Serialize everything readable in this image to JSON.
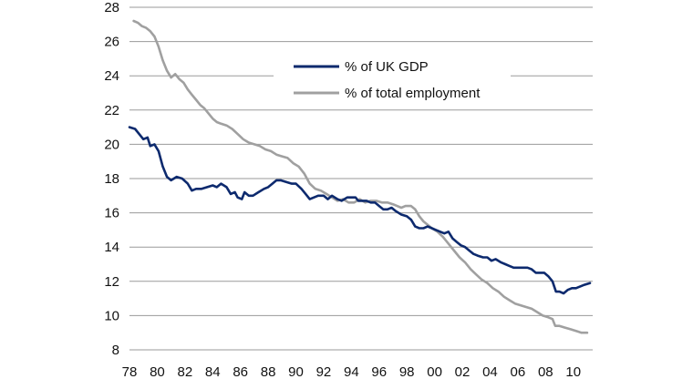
{
  "chart_data": {
    "type": "line",
    "title": "",
    "xlabel": "",
    "ylabel": "",
    "xlim": [
      1978,
      2011.4
    ],
    "ylim": [
      8,
      28
    ],
    "grid": "horizontal",
    "legend_position": "top-center",
    "colors": {
      "gdp": "#0d2a6e",
      "employment": "#a0a0a0"
    },
    "y_ticks": [
      "8",
      "10",
      "12",
      "14",
      "16",
      "18",
      "20",
      "22",
      "24",
      "26",
      "28"
    ],
    "x_ticks": [
      {
        "value": 1978,
        "label": "78"
      },
      {
        "value": 1980,
        "label": "80"
      },
      {
        "value": 1982,
        "label": "82"
      },
      {
        "value": 1984,
        "label": "84"
      },
      {
        "value": 1986,
        "label": "86"
      },
      {
        "value": 1988,
        "label": "88"
      },
      {
        "value": 1990,
        "label": "90"
      },
      {
        "value": 1992,
        "label": "92"
      },
      {
        "value": 1994,
        "label": "94"
      },
      {
        "value": 1996,
        "label": "96"
      },
      {
        "value": 1998,
        "label": "98"
      },
      {
        "value": 2000,
        "label": "00"
      },
      {
        "value": 2002,
        "label": "02"
      },
      {
        "value": 2004,
        "label": "04"
      },
      {
        "value": 2006,
        "label": "06"
      },
      {
        "value": 2008,
        "label": "08"
      },
      {
        "value": 2010,
        "label": "10"
      }
    ],
    "series": [
      {
        "name": "% of UK GDP",
        "color": "#0d2a6e",
        "points": [
          [
            1978.0,
            21.0
          ],
          [
            1978.4,
            20.9
          ],
          [
            1978.7,
            20.6
          ],
          [
            1979.0,
            20.3
          ],
          [
            1979.3,
            20.4
          ],
          [
            1979.5,
            19.9
          ],
          [
            1979.8,
            20.0
          ],
          [
            1980.1,
            19.6
          ],
          [
            1980.4,
            18.7
          ],
          [
            1980.7,
            18.1
          ],
          [
            1981.0,
            17.9
          ],
          [
            1981.4,
            18.1
          ],
          [
            1981.8,
            18.0
          ],
          [
            1982.2,
            17.7
          ],
          [
            1982.5,
            17.3
          ],
          [
            1982.8,
            17.4
          ],
          [
            1983.2,
            17.4
          ],
          [
            1983.6,
            17.5
          ],
          [
            1984.0,
            17.6
          ],
          [
            1984.3,
            17.5
          ],
          [
            1984.6,
            17.7
          ],
          [
            1985.0,
            17.5
          ],
          [
            1985.3,
            17.1
          ],
          [
            1985.6,
            17.2
          ],
          [
            1985.8,
            16.9
          ],
          [
            1986.1,
            16.8
          ],
          [
            1986.3,
            17.2
          ],
          [
            1986.6,
            17.0
          ],
          [
            1986.9,
            17.0
          ],
          [
            1987.3,
            17.2
          ],
          [
            1987.7,
            17.4
          ],
          [
            1988.0,
            17.5
          ],
          [
            1988.3,
            17.7
          ],
          [
            1988.6,
            17.9
          ],
          [
            1988.9,
            17.9
          ],
          [
            1989.3,
            17.8
          ],
          [
            1989.7,
            17.7
          ],
          [
            1990.0,
            17.7
          ],
          [
            1990.4,
            17.4
          ],
          [
            1990.7,
            17.1
          ],
          [
            1991.0,
            16.8
          ],
          [
            1991.3,
            16.9
          ],
          [
            1991.6,
            17.0
          ],
          [
            1992.0,
            17.0
          ],
          [
            1992.3,
            16.8
          ],
          [
            1992.6,
            17.0
          ],
          [
            1993.0,
            16.8
          ],
          [
            1993.3,
            16.7
          ],
          [
            1993.7,
            16.9
          ],
          [
            1994.0,
            16.9
          ],
          [
            1994.3,
            16.9
          ],
          [
            1994.5,
            16.7
          ],
          [
            1994.8,
            16.7
          ],
          [
            1995.1,
            16.7
          ],
          [
            1995.4,
            16.6
          ],
          [
            1995.7,
            16.6
          ],
          [
            1996.0,
            16.4
          ],
          [
            1996.3,
            16.2
          ],
          [
            1996.6,
            16.2
          ],
          [
            1996.9,
            16.3
          ],
          [
            1997.2,
            16.1
          ],
          [
            1997.6,
            15.9
          ],
          [
            1998.0,
            15.8
          ],
          [
            1998.3,
            15.6
          ],
          [
            1998.6,
            15.2
          ],
          [
            1998.9,
            15.1
          ],
          [
            1999.2,
            15.1
          ],
          [
            1999.5,
            15.2
          ],
          [
            1999.8,
            15.1
          ],
          [
            2000.1,
            15.0
          ],
          [
            2000.4,
            14.9
          ],
          [
            2000.7,
            14.8
          ],
          [
            2001.0,
            14.9
          ],
          [
            2001.3,
            14.5
          ],
          [
            2001.6,
            14.3
          ],
          [
            2001.9,
            14.1
          ],
          [
            2002.2,
            14.0
          ],
          [
            2002.5,
            13.8
          ],
          [
            2002.8,
            13.6
          ],
          [
            2003.1,
            13.5
          ],
          [
            2003.5,
            13.4
          ],
          [
            2003.8,
            13.4
          ],
          [
            2004.1,
            13.2
          ],
          [
            2004.4,
            13.3
          ],
          [
            2004.8,
            13.1
          ],
          [
            2005.1,
            13.0
          ],
          [
            2005.4,
            12.9
          ],
          [
            2005.7,
            12.8
          ],
          [
            2006.0,
            12.8
          ],
          [
            2006.4,
            12.8
          ],
          [
            2006.7,
            12.8
          ],
          [
            2007.0,
            12.7
          ],
          [
            2007.3,
            12.5
          ],
          [
            2007.6,
            12.5
          ],
          [
            2007.9,
            12.5
          ],
          [
            2008.2,
            12.3
          ],
          [
            2008.5,
            12.0
          ],
          [
            2008.75,
            11.4
          ],
          [
            2009.0,
            11.4
          ],
          [
            2009.3,
            11.3
          ],
          [
            2009.6,
            11.5
          ],
          [
            2009.9,
            11.6
          ],
          [
            2010.2,
            11.6
          ],
          [
            2010.5,
            11.7
          ],
          [
            2010.8,
            11.8
          ],
          [
            2011.2,
            11.9
          ]
        ]
      },
      {
        "name": "% of total employment",
        "color": "#a0a0a0",
        "points": [
          [
            1978.3,
            27.2
          ],
          [
            1978.6,
            27.1
          ],
          [
            1978.9,
            26.9
          ],
          [
            1979.2,
            26.8
          ],
          [
            1979.5,
            26.6
          ],
          [
            1979.8,
            26.3
          ],
          [
            1980.1,
            25.7
          ],
          [
            1980.4,
            24.9
          ],
          [
            1980.7,
            24.3
          ],
          [
            1981.0,
            23.9
          ],
          [
            1981.3,
            24.1
          ],
          [
            1981.6,
            23.8
          ],
          [
            1981.9,
            23.6
          ],
          [
            1982.2,
            23.2
          ],
          [
            1982.5,
            22.9
          ],
          [
            1982.8,
            22.6
          ],
          [
            1983.1,
            22.3
          ],
          [
            1983.4,
            22.1
          ],
          [
            1983.7,
            21.8
          ],
          [
            1984.0,
            21.5
          ],
          [
            1984.3,
            21.3
          ],
          [
            1984.6,
            21.2
          ],
          [
            1985.0,
            21.1
          ],
          [
            1985.4,
            20.9
          ],
          [
            1985.8,
            20.6
          ],
          [
            1986.2,
            20.3
          ],
          [
            1986.6,
            20.1
          ],
          [
            1987.0,
            20.0
          ],
          [
            1987.4,
            19.9
          ],
          [
            1987.8,
            19.7
          ],
          [
            1988.2,
            19.6
          ],
          [
            1988.6,
            19.4
          ],
          [
            1989.0,
            19.3
          ],
          [
            1989.4,
            19.2
          ],
          [
            1989.8,
            18.9
          ],
          [
            1990.2,
            18.7
          ],
          [
            1990.6,
            18.3
          ],
          [
            1991.0,
            17.7
          ],
          [
            1991.4,
            17.4
          ],
          [
            1991.8,
            17.3
          ],
          [
            1992.2,
            17.1
          ],
          [
            1992.6,
            16.9
          ],
          [
            1993.0,
            16.7
          ],
          [
            1993.4,
            16.8
          ],
          [
            1993.8,
            16.6
          ],
          [
            1994.2,
            16.6
          ],
          [
            1994.6,
            16.8
          ],
          [
            1995.0,
            16.6
          ],
          [
            1995.4,
            16.7
          ],
          [
            1995.8,
            16.7
          ],
          [
            1996.2,
            16.6
          ],
          [
            1996.6,
            16.6
          ],
          [
            1997.0,
            16.5
          ],
          [
            1997.3,
            16.4
          ],
          [
            1997.6,
            16.3
          ],
          [
            1997.9,
            16.4
          ],
          [
            1998.3,
            16.4
          ],
          [
            1998.6,
            16.2
          ],
          [
            1998.9,
            15.8
          ],
          [
            1999.2,
            15.5
          ],
          [
            1999.5,
            15.3
          ],
          [
            1999.8,
            15.1
          ],
          [
            2000.2,
            14.9
          ],
          [
            2000.6,
            14.6
          ],
          [
            2001.0,
            14.2
          ],
          [
            2001.4,
            13.8
          ],
          [
            2001.8,
            13.4
          ],
          [
            2002.2,
            13.1
          ],
          [
            2002.6,
            12.7
          ],
          [
            2003.0,
            12.4
          ],
          [
            2003.4,
            12.1
          ],
          [
            2003.8,
            11.9
          ],
          [
            2004.2,
            11.6
          ],
          [
            2004.6,
            11.4
          ],
          [
            2005.0,
            11.1
          ],
          [
            2005.4,
            10.9
          ],
          [
            2005.8,
            10.7
          ],
          [
            2006.2,
            10.6
          ],
          [
            2006.6,
            10.5
          ],
          [
            2007.0,
            10.4
          ],
          [
            2007.4,
            10.2
          ],
          [
            2007.8,
            10.0
          ],
          [
            2008.2,
            9.9
          ],
          [
            2008.5,
            9.8
          ],
          [
            2008.7,
            9.4
          ],
          [
            2009.0,
            9.4
          ],
          [
            2009.4,
            9.3
          ],
          [
            2009.8,
            9.2
          ],
          [
            2010.2,
            9.1
          ],
          [
            2010.6,
            9.0
          ],
          [
            2011.0,
            9.0
          ]
        ]
      }
    ]
  }
}
